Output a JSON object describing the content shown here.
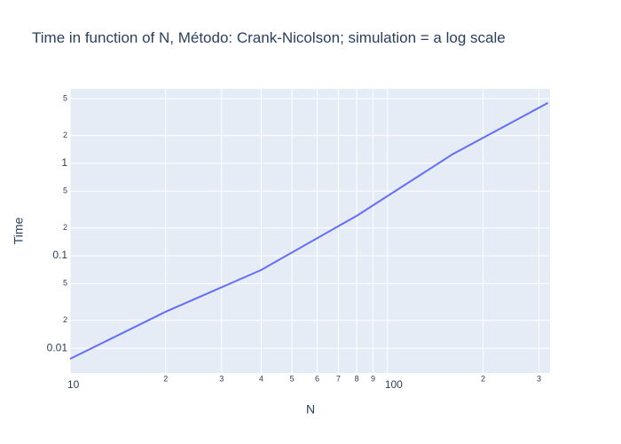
{
  "chart_data": {
    "type": "line",
    "title": "Time in function of N, Método: Crank-Nicolson; simulation = a log scale",
    "x_label": "N",
    "y_label": "Time",
    "xscale": "log",
    "yscale": "log",
    "grid": true,
    "xlim": [
      10,
      325
    ],
    "ylim": [
      0.0054,
      6.4
    ],
    "xticks": [
      10,
      {
        "value": 20,
        "label": "2"
      },
      {
        "value": 30,
        "label": "3"
      },
      {
        "value": 40,
        "label": "4"
      },
      {
        "value": 50,
        "label": "5"
      },
      {
        "value": 60,
        "label": "6"
      },
      {
        "value": 70,
        "label": "7"
      },
      {
        "value": 80,
        "label": "8"
      },
      {
        "value": 90,
        "label": "9"
      },
      100,
      {
        "value": 200,
        "label": "2"
      },
      {
        "value": 300,
        "label": "3"
      }
    ],
    "yticks": [
      0.01,
      {
        "value": 0.02,
        "label": "2"
      },
      {
        "value": 0.05,
        "label": "5"
      },
      0.1,
      {
        "value": 0.2,
        "label": "2"
      },
      {
        "value": 0.5,
        "label": "5"
      },
      1,
      {
        "value": 2,
        "label": "2"
      },
      {
        "value": 5,
        "label": "5"
      }
    ],
    "x": [
      10,
      20,
      40,
      80,
      160,
      320
    ],
    "series": [
      {
        "color": "#636efa",
        "values": [
          0.00767,
          0.0248,
          0.0702,
          0.271,
          1.25,
          4.5
        ]
      }
    ]
  }
}
